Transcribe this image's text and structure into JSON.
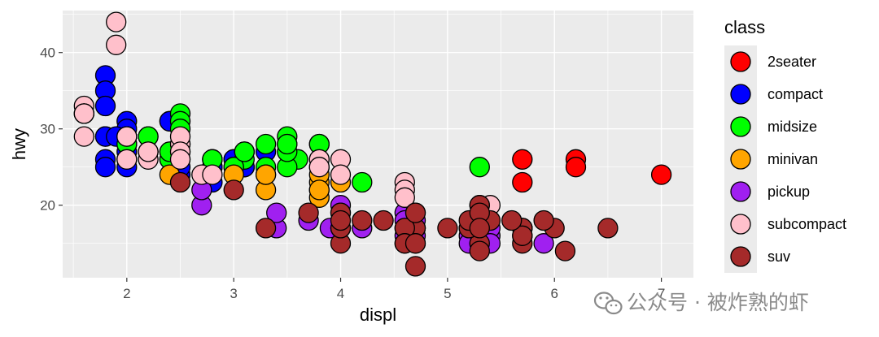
{
  "chart_data": {
    "type": "scatter",
    "title": "",
    "xlabel": "displ",
    "ylabel": "hwy",
    "xlim": [
      1.4,
      7.3
    ],
    "ylim": [
      10.5,
      45.5
    ],
    "xticks": [
      2,
      3,
      4,
      5,
      6,
      7
    ],
    "yticks": [
      20,
      30,
      40
    ],
    "grid": true,
    "legend": {
      "title": "class",
      "placement": "right"
    },
    "series": [
      {
        "name": "2seater",
        "color": "#ff0000",
        "points": [
          [
            5.7,
            26
          ],
          [
            5.7,
            23
          ],
          [
            6.2,
            26
          ],
          [
            6.2,
            25
          ],
          [
            7.0,
            24
          ]
        ]
      },
      {
        "name": "compact",
        "color": "#0000ff",
        "points": [
          [
            1.8,
            29
          ],
          [
            1.8,
            29
          ],
          [
            2.0,
            31
          ],
          [
            2.0,
            30
          ],
          [
            2.8,
            26
          ],
          [
            2.8,
            26
          ],
          [
            3.1,
            27
          ],
          [
            1.8,
            26
          ],
          [
            1.8,
            25
          ],
          [
            2.0,
            28
          ],
          [
            2.0,
            27
          ],
          [
            2.8,
            25
          ],
          [
            2.8,
            25
          ],
          [
            3.1,
            25
          ],
          [
            3.1,
            25
          ],
          [
            2.2,
            27
          ],
          [
            2.2,
            29
          ],
          [
            2.4,
            31
          ],
          [
            2.4,
            31
          ],
          [
            3.0,
            26
          ],
          [
            3.0,
            26
          ],
          [
            3.3,
            27
          ],
          [
            1.8,
            37
          ],
          [
            1.8,
            35
          ],
          [
            1.8,
            33
          ],
          [
            2.0,
            29
          ],
          [
            2.0,
            29
          ],
          [
            2.5,
            26
          ],
          [
            2.5,
            24
          ],
          [
            2.5,
            25
          ],
          [
            2.5,
            28
          ],
          [
            2.0,
            26
          ],
          [
            2.0,
            25
          ],
          [
            2.0,
            29
          ],
          [
            2.0,
            28
          ],
          [
            1.9,
            29
          ],
          [
            2.8,
            23
          ],
          [
            2.5,
            27
          ],
          [
            3.1,
            25
          ]
        ]
      },
      {
        "name": "midsize",
        "color": "#00ff00",
        "points": [
          [
            2.4,
            26
          ],
          [
            2.4,
            27
          ],
          [
            3.1,
            26
          ],
          [
            3.5,
            29
          ],
          [
            3.6,
            26
          ],
          [
            3.1,
            27
          ],
          [
            3.5,
            25
          ],
          [
            3.5,
            28
          ],
          [
            3.8,
            25
          ],
          [
            3.8,
            26
          ],
          [
            3.8,
            28
          ],
          [
            2.5,
            32
          ],
          [
            2.5,
            31
          ],
          [
            2.5,
            30
          ],
          [
            3.5,
            27
          ],
          [
            3.5,
            28
          ],
          [
            2.2,
            29
          ],
          [
            2.2,
            27
          ],
          [
            2.4,
            26
          ],
          [
            2.4,
            27
          ],
          [
            3.0,
            25
          ],
          [
            3.0,
            25
          ],
          [
            3.3,
            25
          ],
          [
            4.2,
            23
          ],
          [
            2.0,
            28
          ],
          [
            2.0,
            29
          ],
          [
            2.8,
            26
          ],
          [
            3.1,
            27
          ],
          [
            5.3,
            25
          ],
          [
            3.3,
            28
          ],
          [
            3.8,
            28
          ]
        ]
      },
      {
        "name": "minivan",
        "color": "#ffa500",
        "points": [
          [
            2.4,
            24
          ],
          [
            3.0,
            24
          ],
          [
            3.3,
            22
          ],
          [
            3.3,
            24
          ],
          [
            3.3,
            24
          ],
          [
            3.8,
            22
          ],
          [
            3.8,
            21
          ],
          [
            3.8,
            23
          ],
          [
            4.0,
            23
          ],
          [
            3.8,
            24
          ],
          [
            3.8,
            22
          ]
        ]
      },
      {
        "name": "pickup",
        "color": "#a020f0",
        "points": [
          [
            2.7,
            20
          ],
          [
            2.7,
            22
          ],
          [
            3.4,
            17
          ],
          [
            3.4,
            19
          ],
          [
            3.7,
            18
          ],
          [
            4.0,
            17
          ],
          [
            4.0,
            20
          ],
          [
            4.0,
            19
          ],
          [
            4.2,
            17
          ],
          [
            4.7,
            17
          ],
          [
            4.7,
            16
          ],
          [
            4.7,
            17
          ],
          [
            4.7,
            18
          ],
          [
            5.2,
            16
          ],
          [
            5.2,
            15
          ],
          [
            5.2,
            17
          ],
          [
            5.3,
            17
          ],
          [
            5.3,
            15
          ],
          [
            5.4,
            16
          ],
          [
            5.4,
            17
          ],
          [
            5.4,
            15
          ],
          [
            5.7,
            17
          ],
          [
            5.7,
            16
          ],
          [
            5.9,
            15
          ],
          [
            4.6,
            19
          ],
          [
            4.6,
            18
          ],
          [
            4.6,
            16
          ],
          [
            4.6,
            17
          ],
          [
            3.9,
            17
          ],
          [
            4.0,
            17
          ]
        ]
      },
      {
        "name": "subcompact",
        "color": "#ffc0cb",
        "points": [
          [
            1.9,
            44
          ],
          [
            1.9,
            41
          ],
          [
            1.6,
            33
          ],
          [
            1.6,
            32
          ],
          [
            1.6,
            32
          ],
          [
            1.6,
            29
          ],
          [
            1.6,
            32
          ],
          [
            2.0,
            29
          ],
          [
            2.0,
            26
          ],
          [
            2.2,
            26
          ],
          [
            2.2,
            27
          ],
          [
            2.5,
            28
          ],
          [
            2.5,
            29
          ],
          [
            2.5,
            27
          ],
          [
            2.5,
            26
          ],
          [
            2.7,
            24
          ],
          [
            2.8,
            24
          ],
          [
            3.8,
            26
          ],
          [
            3.8,
            25
          ],
          [
            4.0,
            26
          ],
          [
            4.0,
            24
          ],
          [
            4.6,
            23
          ],
          [
            4.6,
            22
          ],
          [
            5.4,
            20
          ],
          [
            4.6,
            21
          ]
        ]
      },
      {
        "name": "suv",
        "color": "#a52a2a",
        "points": [
          [
            5.3,
            20
          ],
          [
            5.3,
            15
          ],
          [
            5.3,
            20
          ],
          [
            5.7,
            17
          ],
          [
            6.0,
            17
          ],
          [
            5.7,
            17
          ],
          [
            6.5,
            17
          ],
          [
            4.7,
            12
          ],
          [
            4.7,
            17
          ],
          [
            4.7,
            15
          ],
          [
            5.2,
            17
          ],
          [
            5.7,
            15
          ],
          [
            5.9,
            18
          ],
          [
            4.7,
            19
          ],
          [
            5.2,
            18
          ],
          [
            5.7,
            16
          ],
          [
            6.1,
            14
          ],
          [
            4.0,
            15
          ],
          [
            4.6,
            17
          ],
          [
            5.4,
            18
          ],
          [
            4.2,
            18
          ],
          [
            4.4,
            18
          ],
          [
            4.0,
            17
          ],
          [
            4.0,
            19
          ],
          [
            3.3,
            17
          ],
          [
            3.7,
            19
          ],
          [
            3.0,
            22
          ],
          [
            2.5,
            23
          ],
          [
            5.3,
            14
          ],
          [
            5.3,
            19
          ],
          [
            5.6,
            18
          ],
          [
            4.6,
            15
          ],
          [
            4.7,
            19
          ],
          [
            5.0,
            17
          ],
          [
            4.0,
            17
          ],
          [
            4.0,
            18
          ],
          [
            4.6,
            15
          ],
          [
            4.7,
            15
          ],
          [
            5.3,
            17
          ]
        ]
      }
    ]
  },
  "watermark": {
    "text": "公众号 · 被炸熟的虾",
    "icon": "wechat-icon"
  }
}
